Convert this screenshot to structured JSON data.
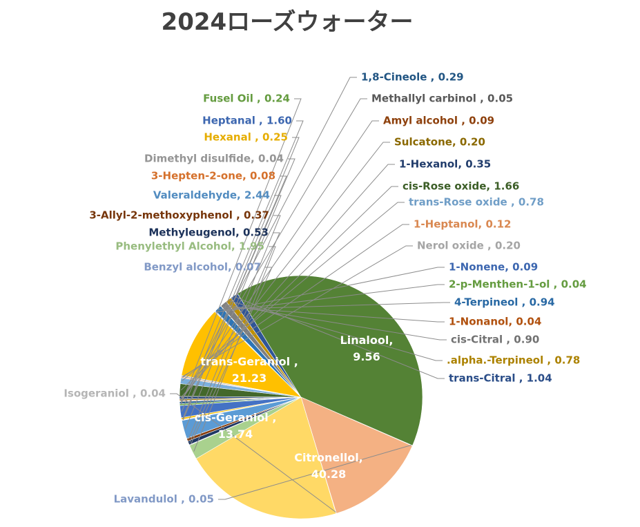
{
  "chart_data": {
    "type": "pie",
    "title": "2024ローズウォーター",
    "series": [
      {
        "name": "Fusel Oil",
        "value": 0.24,
        "label": "Fusel Oil , 0.24",
        "color": "#70ad47"
      },
      {
        "name": "1,8-Cineole",
        "value": 0.29,
        "label": "1,8-Cineole , 0.29",
        "color": "#255e91"
      },
      {
        "name": "Methallyl carbinol",
        "value": 0.05,
        "label": "Methallyl carbinol , 0.05",
        "color": "#636363"
      },
      {
        "name": "Amyl alcohol",
        "value": 0.09,
        "label": "Amyl alcohol , 0.09",
        "color": "#9e480e"
      },
      {
        "name": "Sulcatone",
        "value": 0.2,
        "label": "Sulcatone, 0.20",
        "color": "#997300"
      },
      {
        "name": "1-Hexanol",
        "value": 0.35,
        "label": "1-Hexanol, 0.35",
        "color": "#264478"
      },
      {
        "name": "cis-Rose oxide",
        "value": 1.66,
        "label": "cis-Rose oxide, 1.66",
        "color": "#43682b"
      },
      {
        "name": "trans-Rose oxide",
        "value": 0.78,
        "label": "trans-Rose oxide , 0.78",
        "color": "#7cafdd"
      },
      {
        "name": "1-Heptanol",
        "value": 0.12,
        "label": "1-Heptanol, 0.12",
        "color": "#f1975a"
      },
      {
        "name": "Nerol oxide",
        "value": 0.2,
        "label": "Nerol oxide , 0.20",
        "color": "#b7b7b7"
      },
      {
        "name": "Linalool",
        "value": 9.56,
        "label": "Linalool,",
        "value_label": "9.56",
        "color": "#ffc000",
        "inside": true
      },
      {
        "name": "1-Nonene",
        "value": 0.09,
        "label": "1-Nonene, 0.09",
        "color": "#4472c4"
      },
      {
        "name": "2-p-Menthen-1-ol",
        "value": 0.04,
        "label": "2-p-Menthen-1-ol , 0.04",
        "color": "#70ad47"
      },
      {
        "name": "4-Terpineol",
        "value": 0.94,
        "label": "4-Terpineol , 0.94",
        "color": "#2e75b6"
      },
      {
        "name": "1-Nonanol",
        "value": 0.04,
        "label": "1-Nonanol, 0.04",
        "color": "#c55a11"
      },
      {
        "name": "cis-Citral",
        "value": 0.9,
        "label": "cis-Citral , 0.90",
        "color": "#7f7f7f"
      },
      {
        "name": ".alpha.-Terpineol",
        "value": 0.78,
        "label": ".alpha.-Terpineol , 0.78",
        "color": "#bf9000"
      },
      {
        "name": "trans-Citral",
        "value": 1.04,
        "label": "trans-Citral , 1.04",
        "color": "#2f5597"
      },
      {
        "name": "Citronellol",
        "value": 40.28,
        "label": "Citronellol,",
        "value_label": "40.28",
        "color": "#548235",
        "inside": true
      },
      {
        "name": "Lavandulol",
        "value": 0.05,
        "label": "Lavandulol , 0.05",
        "color": "#8faadc"
      },
      {
        "name": "cis-Geraniol",
        "value": 13.74,
        "label": "cis-Geraniol ,",
        "value_label": "13.74",
        "color": "#f4b183",
        "inside": true
      },
      {
        "name": "Isogeraniol",
        "value": 0.04,
        "label": "Isogeraniol , 0.04",
        "color": "#c9c9c9"
      },
      {
        "name": "trans-Geraniol",
        "value": 21.23,
        "label": "trans-Geraniol ,",
        "value_label": "21.23",
        "color": "#ffd966",
        "inside": true
      },
      {
        "name": "Phenylethyl Alcohol",
        "value": 1.95,
        "label": "Phenylethyl Alcohol, 1.95",
        "color": "#a9d18e"
      },
      {
        "name": "Benzyl alcohol",
        "value": 0.07,
        "label": "Benzyl alcohol, 0.07",
        "color": "#8faadc"
      },
      {
        "name": "Methyleugenol",
        "value": 0.53,
        "label": "Methyleugenol, 0.53",
        "color": "#1f3864"
      },
      {
        "name": "3-Allyl-2-methoxyphenol",
        "value": 0.37,
        "label": "3-Allyl-2-methoxyphenol , 0.37",
        "color": "#843c0c"
      },
      {
        "name": "Valeraldehyde",
        "value": 2.44,
        "label": "Valeraldehyde, 2.44",
        "color": "#5b9bd5"
      },
      {
        "name": "3-Hepten-2-one",
        "value": 0.08,
        "label": "3-Hepten-2-one, 0.08",
        "color": "#ed7d31"
      },
      {
        "name": "Dimethyl disulfide",
        "value": 0.04,
        "label": "Dimethyl disulfide, 0.04",
        "color": "#a5a5a5"
      },
      {
        "name": "Hexanal",
        "value": 0.25,
        "label": "Hexanal , 0.25",
        "color": "#ffc000"
      },
      {
        "name": "Heptanal",
        "value": 1.6,
        "label": "Heptanal , 1.60",
        "color": "#4472c4"
      }
    ]
  }
}
